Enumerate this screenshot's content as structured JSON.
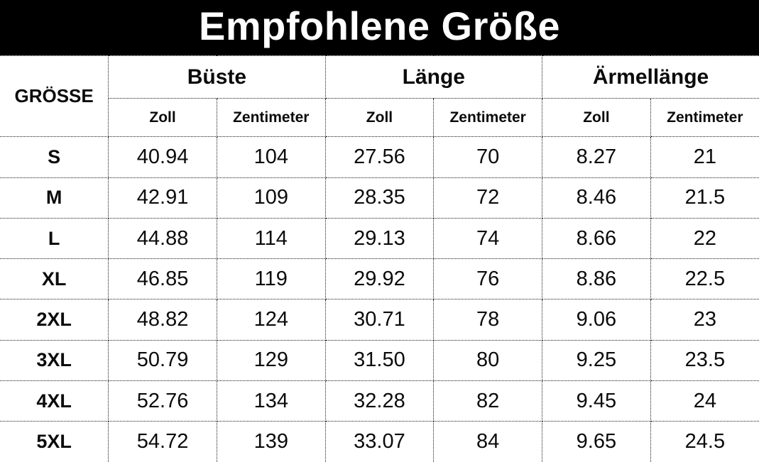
{
  "title": "Empfohlene Größe",
  "table": {
    "size_column_header": "GRÖSSE",
    "groups": [
      {
        "label": "Büste"
      },
      {
        "label": "Länge"
      },
      {
        "label": "Ärmellänge"
      }
    ],
    "unit_headers": {
      "inch": "Zoll",
      "cm": "Zentimeter"
    },
    "rows": [
      {
        "size": "S",
        "values": [
          "40.94",
          "104",
          "27.56",
          "70",
          "8.27",
          "21"
        ]
      },
      {
        "size": "M",
        "values": [
          "42.91",
          "109",
          "28.35",
          "72",
          "8.46",
          "21.5"
        ]
      },
      {
        "size": "L",
        "values": [
          "44.88",
          "114",
          "29.13",
          "74",
          "8.66",
          "22"
        ]
      },
      {
        "size": "XL",
        "values": [
          "46.85",
          "119",
          "29.92",
          "76",
          "8.86",
          "22.5"
        ]
      },
      {
        "size": "2XL",
        "values": [
          "48.82",
          "124",
          "30.71",
          "78",
          "9.06",
          "23"
        ]
      },
      {
        "size": "3XL",
        "values": [
          "50.79",
          "129",
          "31.50",
          "80",
          "9.25",
          "23.5"
        ]
      },
      {
        "size": "4XL",
        "values": [
          "52.76",
          "134",
          "32.28",
          "82",
          "9.45",
          "24"
        ]
      },
      {
        "size": "5XL",
        "values": [
          "54.72",
          "139",
          "33.07",
          "84",
          "9.65",
          "24.5"
        ]
      }
    ]
  },
  "colors": {
    "banner_background": "#000000",
    "banner_text": "#ffffff",
    "table_background": "#ffffff",
    "table_text": "#0b0b0b",
    "border": "#1a1a1a"
  }
}
